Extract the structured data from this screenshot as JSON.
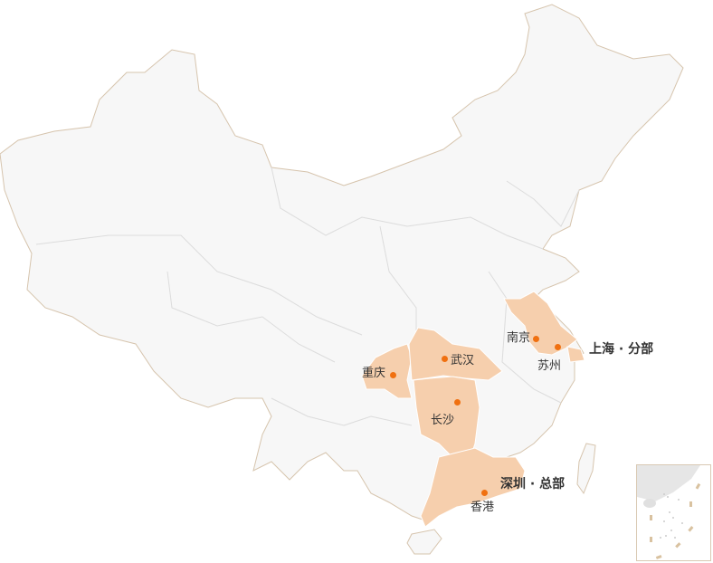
{
  "colors": {
    "land": "#f7f7f7",
    "border": "#d6c4ad",
    "highlight": "#f6cfad",
    "dot": "#f07010",
    "text": "#333333"
  },
  "cities": [
    {
      "name": "南京"
    },
    {
      "name": "苏州"
    },
    {
      "name": "武汉"
    },
    {
      "name": "重庆"
    },
    {
      "name": "长沙"
    },
    {
      "name": "香港"
    }
  ],
  "offices": [
    {
      "label": "上海 · 分部"
    },
    {
      "label": "深圳 · 总部"
    }
  ]
}
